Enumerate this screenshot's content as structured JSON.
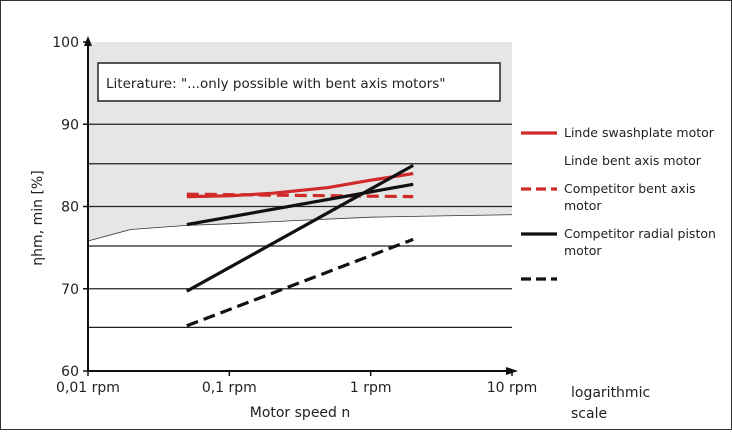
{
  "chart_data": {
    "type": "line",
    "xscale": "log",
    "xlim": [
      0.01,
      10
    ],
    "ylim": [
      60,
      100
    ],
    "yticks": [
      60,
      70,
      80,
      90,
      100
    ],
    "xticks": [
      {
        "value": 0.01,
        "label": "0,01 rpm"
      },
      {
        "value": 0.1,
        "label": "0,1 rpm"
      },
      {
        "value": 1,
        "label": "1 rpm"
      },
      {
        "value": 10,
        "label": "10 rpm"
      }
    ],
    "xlabel": "Motor speed n",
    "ylabel": "ηhm, min [%]",
    "xscale_note": [
      "logarithmic",
      "scale"
    ],
    "annotation": "Literature: \"...only possible with bent axis motors\"",
    "shaded_region": {
      "lower_curve": [
        [
          0.01,
          75.8
        ],
        [
          0.02,
          77.2
        ],
        [
          0.05,
          77.7
        ],
        [
          0.1,
          77.9
        ],
        [
          0.3,
          78.3
        ],
        [
          1,
          78.7
        ],
        [
          2,
          78.8
        ],
        [
          10,
          79.0
        ]
      ],
      "upper": 100,
      "color": "#e6e6e6"
    },
    "grid_y": [
      65.3,
      70,
      75.2,
      80,
      85.2,
      90
    ],
    "series": [
      {
        "name": "Linde swashplate motor",
        "color": "#d02a2a",
        "dash": "solid",
        "points": [
          [
            0.05,
            81.2
          ],
          [
            0.1,
            81.3
          ],
          [
            0.2,
            81.6
          ],
          [
            0.5,
            82.3
          ],
          [
            1,
            83.2
          ],
          [
            2,
            84.0
          ]
        ]
      },
      {
        "name": "Linde bent axis motor",
        "color": "#ffffff",
        "dash": "solid",
        "points": []
      },
      {
        "name": "Competitor bent axis motor",
        "color": "#d02a2a",
        "dash": "dashed",
        "points": [
          [
            0.05,
            81.5
          ],
          [
            2,
            81.2
          ]
        ]
      },
      {
        "name": "Competitor radial piston motor",
        "color": "#111111",
        "dash": "solid",
        "points": [
          [
            0.05,
            77.8
          ],
          [
            2,
            82.7
          ]
        ]
      },
      {
        "name": "",
        "color": "#111111",
        "dash": "solid",
        "points": [
          [
            0.05,
            69.7
          ],
          [
            2,
            85.0
          ]
        ]
      },
      {
        "name": "",
        "color": "#111111",
        "dash": "dashed",
        "points": [
          [
            0.05,
            65.5
          ],
          [
            2,
            76.0
          ]
        ]
      }
    ],
    "legend": [
      {
        "lines": [
          "Linde swashplate motor"
        ],
        "color": "#d02a2a",
        "dash": "solid"
      },
      {
        "lines": [
          "Linde bent axis motor"
        ],
        "color": "#ffffff",
        "dash": "solid"
      },
      {
        "lines": [
          "Competitor bent axis",
          "motor"
        ],
        "color": "#d02a2a",
        "dash": "dashed"
      },
      {
        "lines": [
          "Competitor radial piston",
          "motor"
        ],
        "color": "#111111",
        "dash": "solid"
      },
      {
        "lines": [
          ""
        ],
        "color": "#111111",
        "dash": "dashed"
      }
    ]
  }
}
